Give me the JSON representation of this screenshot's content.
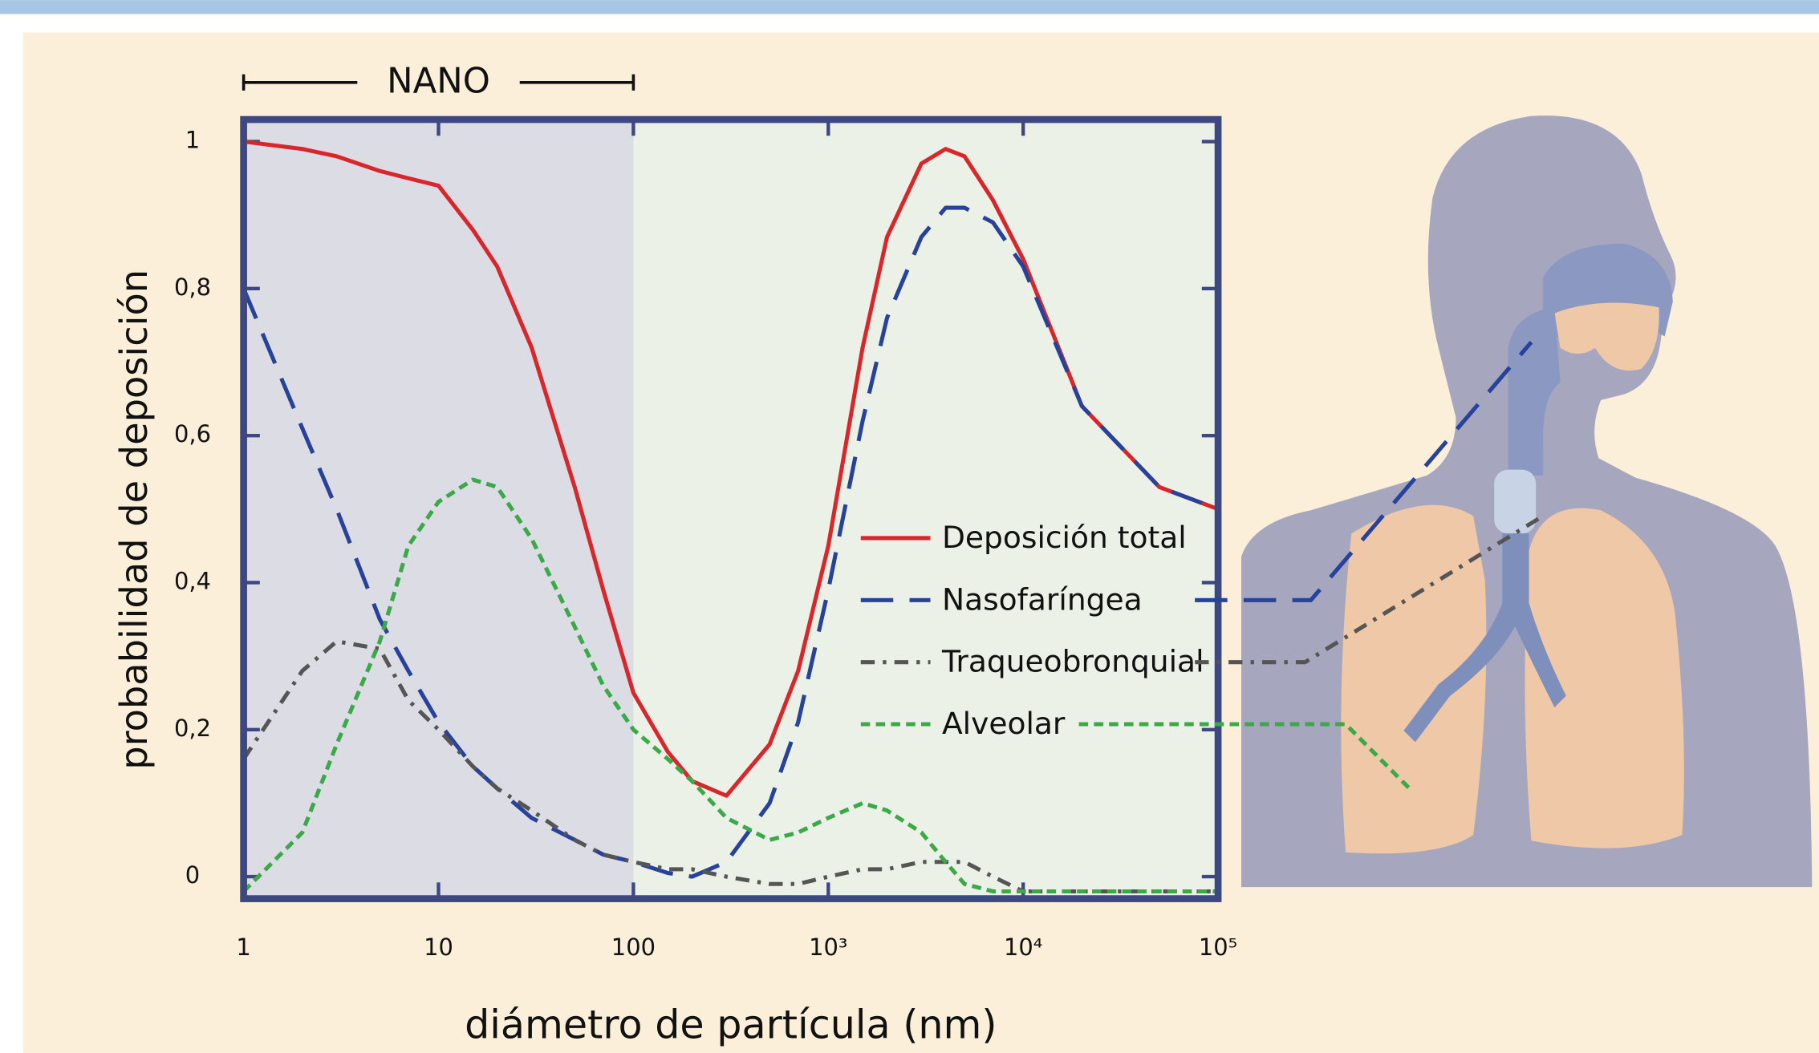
{
  "chart_data": {
    "type": "line",
    "y_label": "probabilidad de deposición",
    "x_label": "diámetro de partícula (nm)",
    "log_x": true,
    "xlim": [
      1,
      100000
    ],
    "ylim": [
      -0.03,
      1.03
    ],
    "xticks": [
      1,
      10,
      100,
      {
        "value": 1000,
        "label": "10³"
      },
      {
        "value": 10000,
        "label": "10⁴"
      },
      {
        "value": 100000,
        "label": "10⁵"
      }
    ],
    "yticks": [
      0,
      {
        "value": 0.2,
        "label": "0,2"
      },
      {
        "value": 0.4,
        "label": "0,4"
      },
      {
        "value": 0.6,
        "label": "0,6"
      },
      {
        "value": 0.8,
        "label": "0,8"
      },
      1
    ],
    "annotations": [
      {
        "text": "NANO",
        "x": [
          1,
          100
        ]
      }
    ],
    "regions": [
      {
        "x": [
          1,
          100
        ],
        "color": "#dcdce4"
      },
      {
        "x": [
          100,
          100000
        ],
        "color": "#ebf1e6"
      }
    ],
    "x": [
      1,
      2,
      3,
      5,
      7,
      10,
      15,
      20,
      30,
      50,
      70,
      100,
      150,
      200,
      300,
      500,
      700,
      1000,
      1500,
      2000,
      3000,
      4000,
      5000,
      7000,
      10000,
      20000,
      50000,
      100000
    ],
    "series": [
      {
        "name": "Deposición total",
        "color": "#d9262b",
        "dash": "solid",
        "values": [
          1.0,
          0.99,
          0.98,
          0.96,
          0.95,
          0.94,
          0.88,
          0.83,
          0.72,
          0.53,
          0.39,
          0.25,
          0.17,
          0.13,
          0.11,
          0.18,
          0.28,
          0.45,
          0.72,
          0.87,
          0.97,
          0.99,
          0.98,
          0.92,
          0.84,
          0.64,
          0.53,
          0.5
        ]
      },
      {
        "name": "Nasofaríngea",
        "color": "#26429a",
        "dash": "long-dash",
        "values": [
          0.8,
          0.61,
          0.5,
          0.35,
          0.28,
          0.21,
          0.15,
          0.12,
          0.08,
          0.05,
          0.03,
          0.02,
          0.005,
          0,
          0.02,
          0.1,
          0.21,
          0.39,
          0.62,
          0.76,
          0.87,
          0.91,
          0.91,
          0.89,
          0.83,
          0.64,
          0.53,
          0.5
        ]
      },
      {
        "name": "Traqueobronquial",
        "color": "#555555",
        "dash": "dash-dot",
        "values": [
          0.16,
          0.28,
          0.32,
          0.31,
          0.24,
          0.2,
          0.15,
          0.12,
          0.09,
          0.05,
          0.03,
          0.02,
          0.01,
          0.01,
          0,
          -0.01,
          -0.01,
          0,
          0.01,
          0.01,
          0.02,
          0.02,
          0.02,
          0,
          -0.02,
          -0.02,
          -0.02,
          -0.02
        ]
      },
      {
        "name": "Alveolar",
        "color": "#3aaa48",
        "dash": "short-dash",
        "values": [
          -0.02,
          0.06,
          0.18,
          0.32,
          0.45,
          0.51,
          0.54,
          0.53,
          0.46,
          0.34,
          0.26,
          0.2,
          0.16,
          0.13,
          0.08,
          0.05,
          0.06,
          0.08,
          0.1,
          0.09,
          0.06,
          0.02,
          -0.01,
          -0.02,
          -0.02,
          -0.02,
          -0.02,
          -0.02
        ]
      }
    ]
  }
}
